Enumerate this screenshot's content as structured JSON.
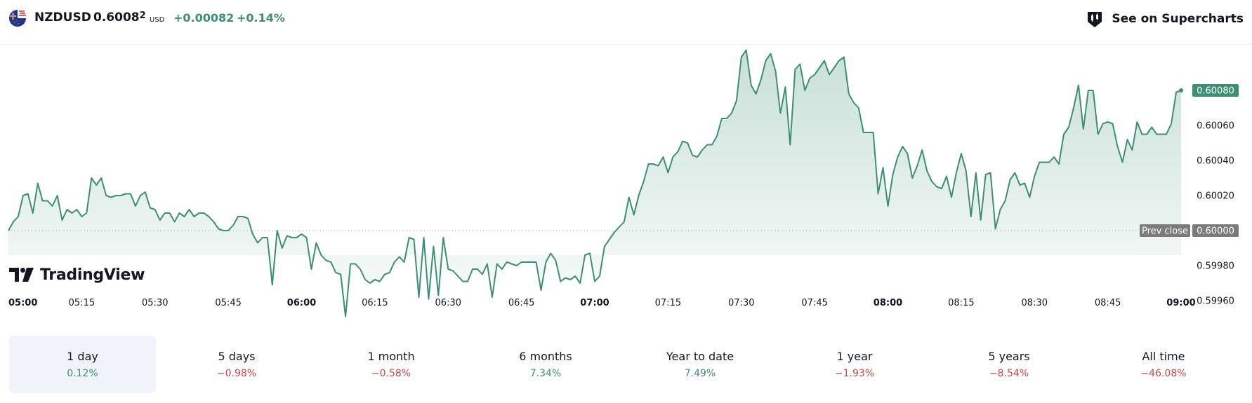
{
  "header": {
    "symbol": "NZDUSD",
    "price_main": "0.6008",
    "price_sup": "2",
    "currency": "USD",
    "change_abs": "+0.00082",
    "change_pct": "+0.14%",
    "supercharts_label": "See on Supercharts",
    "flag_icon": "nz-us-flag-icon",
    "supercharts_icon": "supercharts-icon"
  },
  "logo": {
    "text": "TradingView"
  },
  "colors": {
    "line": "#3d8f73",
    "up": "#3d8f73",
    "down": "#d24545",
    "prev_close_badge": "#7b7b7b",
    "active_period_bg": "#f0f3fa"
  },
  "periods": [
    {
      "label": "1 day",
      "change": "0.12%",
      "dir": "up",
      "active": true
    },
    {
      "label": "5 days",
      "change": "−0.98%",
      "dir": "down",
      "active": false
    },
    {
      "label": "1 month",
      "change": "−0.58%",
      "dir": "down",
      "active": false
    },
    {
      "label": "6 months",
      "change": "7.34%",
      "dir": "up",
      "active": false
    },
    {
      "label": "Year to date",
      "change": "7.49%",
      "dir": "up",
      "active": false
    },
    {
      "label": "1 year",
      "change": "−1.93%",
      "dir": "down",
      "active": false
    },
    {
      "label": "5 years",
      "change": "−8.54%",
      "dir": "down",
      "active": false
    },
    {
      "label": "All time",
      "change": "−46.08%",
      "dir": "down",
      "active": false
    }
  ],
  "chart_data": {
    "type": "area",
    "title": "",
    "xlabel": "",
    "ylabel": "",
    "x_range": [
      "05:00",
      "09:00"
    ],
    "ylim": [
      0.5995,
      0.60106
    ],
    "x_ticks": [
      {
        "label": "05:00",
        "minute": 0,
        "bold": true
      },
      {
        "label": "05:15",
        "minute": 15,
        "bold": false
      },
      {
        "label": "05:30",
        "minute": 30,
        "bold": false
      },
      {
        "label": "05:45",
        "minute": 45,
        "bold": false
      },
      {
        "label": "06:00",
        "minute": 60,
        "bold": true
      },
      {
        "label": "06:15",
        "minute": 75,
        "bold": false
      },
      {
        "label": "06:30",
        "minute": 90,
        "bold": false
      },
      {
        "label": "06:45",
        "minute": 105,
        "bold": false
      },
      {
        "label": "07:00",
        "minute": 120,
        "bold": true
      },
      {
        "label": "07:15",
        "minute": 135,
        "bold": false
      },
      {
        "label": "07:30",
        "minute": 150,
        "bold": false
      },
      {
        "label": "07:45",
        "minute": 165,
        "bold": false
      },
      {
        "label": "08:00",
        "minute": 180,
        "bold": true
      },
      {
        "label": "08:15",
        "minute": 195,
        "bold": false
      },
      {
        "label": "08:30",
        "minute": 210,
        "bold": false
      },
      {
        "label": "08:45",
        "minute": 225,
        "bold": false
      },
      {
        "label": "09:00",
        "minute": 240,
        "bold": true
      }
    ],
    "y_ticks": [
      "0.59960",
      "0.59980",
      "0.60000",
      "0.60020",
      "0.60040",
      "0.60060"
    ],
    "y_tick_values": [
      0.5996,
      0.5998,
      0.6,
      0.6002,
      0.6004,
      0.6006
    ],
    "prev_close": {
      "label": "Prev close",
      "value": 0.6,
      "value_label": "0.60000"
    },
    "last_price": {
      "value": 0.6008,
      "label": "0.60080"
    },
    "series": [
      {
        "minute": [
          0,
          1,
          2,
          3,
          4,
          5,
          6,
          7,
          8,
          9,
          10,
          11,
          12,
          13,
          14,
          15,
          16,
          17,
          18,
          19,
          20,
          21,
          22,
          23,
          24,
          25,
          26,
          27,
          28,
          29,
          30,
          31,
          32,
          33,
          34,
          35,
          36,
          37,
          38,
          39,
          40,
          41,
          42,
          43,
          44,
          45,
          46,
          47,
          48,
          49,
          50,
          51,
          52,
          53,
          54,
          55,
          56,
          57,
          58,
          59,
          60,
          61,
          62,
          63,
          64,
          65,
          66,
          67,
          68,
          69,
          70,
          71,
          72,
          73,
          74,
          75,
          76,
          77,
          78,
          79,
          80,
          81,
          82,
          83,
          84,
          85,
          86,
          87,
          88,
          89,
          90,
          91,
          92,
          93,
          94,
          95,
          96,
          97,
          98,
          99,
          100,
          101,
          102,
          103,
          104,
          105,
          106,
          107,
          108,
          109,
          110,
          111,
          112,
          113,
          114,
          115,
          116,
          117,
          118,
          119,
          120,
          121,
          122,
          123,
          124,
          125,
          126,
          127,
          128,
          129,
          130,
          131,
          132,
          133,
          134,
          135,
          136,
          137,
          138,
          139,
          140,
          141,
          142,
          143,
          144,
          145,
          146,
          147,
          148,
          149,
          150,
          151,
          152,
          153,
          154,
          155,
          156,
          157,
          158,
          159,
          160,
          161,
          162,
          163,
          164,
          165,
          166,
          167,
          168,
          169,
          170,
          171,
          172,
          173,
          174,
          175,
          176,
          177,
          178,
          179,
          180,
          181,
          182,
          183,
          184,
          185,
          186,
          187,
          188,
          189,
          190,
          191,
          192,
          193,
          194,
          195,
          196,
          197,
          198,
          199,
          200,
          201,
          202,
          203,
          204,
          205,
          206,
          207,
          208,
          209,
          210,
          211,
          212,
          213,
          214,
          215,
          216,
          217,
          218,
          219,
          220,
          221,
          222,
          223,
          224,
          225,
          226,
          227,
          228,
          229,
          230,
          231,
          232,
          233,
          234,
          235,
          236,
          237,
          238,
          239,
          240
        ],
        "values": [
          0.6,
          0.60005,
          0.60008,
          0.6002,
          0.60021,
          0.6001,
          0.60027,
          0.60017,
          0.60017,
          0.60014,
          0.6002,
          0.60006,
          0.60012,
          0.6001,
          0.60012,
          0.60008,
          0.6001,
          0.6003,
          0.60026,
          0.6003,
          0.6002,
          0.60019,
          0.6002,
          0.6002,
          0.60021,
          0.60021,
          0.60014,
          0.6002,
          0.60022,
          0.60013,
          0.60012,
          0.60006,
          0.6001,
          0.6001,
          0.60005,
          0.6001,
          0.60008,
          0.60012,
          0.60008,
          0.6001,
          0.6001,
          0.60008,
          0.60005,
          0.60001,
          0.6,
          0.6,
          0.60003,
          0.60008,
          0.60008,
          0.60007,
          0.59998,
          0.59993,
          0.59996,
          0.59996,
          0.59969,
          0.6,
          0.5999,
          0.59997,
          0.59996,
          0.59996,
          0.59998,
          0.59996,
          0.59978,
          0.59993,
          0.59986,
          0.59983,
          0.59982,
          0.59976,
          0.59975,
          0.59951,
          0.59981,
          0.59981,
          0.59978,
          0.59972,
          0.5997,
          0.59972,
          0.59971,
          0.59975,
          0.59976,
          0.59982,
          0.59985,
          0.59982,
          0.59996,
          0.59995,
          0.59962,
          0.59996,
          0.59961,
          0.59991,
          0.59963,
          0.59996,
          0.59978,
          0.59977,
          0.59974,
          0.59971,
          0.59971,
          0.59978,
          0.59978,
          0.59975,
          0.59981,
          0.59962,
          0.59981,
          0.59978,
          0.59982,
          0.59981,
          0.5998,
          0.59982,
          0.59982,
          0.59982,
          0.59982,
          0.59966,
          0.59982,
          0.59987,
          0.59983,
          0.59971,
          0.59973,
          0.59972,
          0.59974,
          0.5997,
          0.59986,
          0.59987,
          0.59971,
          0.59974,
          0.59991,
          0.59995,
          0.59999,
          0.60002,
          0.60005,
          0.60019,
          0.60009,
          0.6002,
          0.60028,
          0.60038,
          0.60038,
          0.60037,
          0.60042,
          0.60033,
          0.60042,
          0.60045,
          0.60051,
          0.6005,
          0.60043,
          0.60042,
          0.60046,
          0.60049,
          0.60049,
          0.60054,
          0.60064,
          0.60064,
          0.60067,
          0.60074,
          0.60099,
          0.60103,
          0.60083,
          0.60078,
          0.60086,
          0.60097,
          0.60101,
          0.60091,
          0.60067,
          0.60082,
          0.60049,
          0.60092,
          0.60095,
          0.6008,
          0.60087,
          0.60089,
          0.60093,
          0.60097,
          0.60089,
          0.60093,
          0.60097,
          0.60099,
          0.60078,
          0.60073,
          0.6007,
          0.60056,
          0.60056,
          0.60056,
          0.60021,
          0.60036,
          0.60014,
          0.60032,
          0.60042,
          0.60048,
          0.60044,
          0.6003,
          0.60037,
          0.60046,
          0.60034,
          0.60028,
          0.60025,
          0.60024,
          0.60031,
          0.60019,
          0.60033,
          0.60044,
          0.60034,
          0.60008,
          0.60033,
          0.60006,
          0.60032,
          0.60033,
          0.60001,
          0.60012,
          0.60017,
          0.60029,
          0.60033,
          0.60026,
          0.60027,
          0.60019,
          0.60031,
          0.60039,
          0.60039,
          0.60039,
          0.60042,
          0.60038,
          0.60055,
          0.60059,
          0.6007,
          0.60083,
          0.60058,
          0.6008,
          0.6008,
          0.60055,
          0.60061,
          0.60062,
          0.60061,
          0.60048,
          0.60039,
          0.60052,
          0.60046,
          0.60062,
          0.60055,
          0.60055,
          0.60059,
          0.60055,
          0.60055,
          0.60055,
          0.60061,
          0.60079,
          0.6008
        ]
      }
    ],
    "grid": false,
    "legend": "none"
  }
}
